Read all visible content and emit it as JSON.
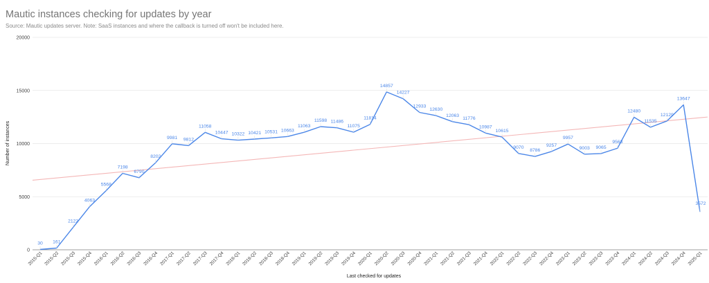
{
  "header": {
    "title": "Mautic instances checking for updates by year",
    "subtitle": "Source: Mautic updates server. Note: SaaS instances and where the callback is turned off won't be included here."
  },
  "colors": {
    "series": "#4a86e8",
    "trendline": "#f4b6b6",
    "grid": "#e6e6e6",
    "axis": "#9e9e9e"
  },
  "chart_data": {
    "type": "line",
    "title": "Mautic instances checking for updates by year",
    "subtitle": "Source: Mautic updates server. Note: SaaS instances and where the callback is turned off won't be included here.",
    "xlabel": "Last checked for updates",
    "ylabel": "Number of instances",
    "ylim": [
      0,
      20000
    ],
    "yticks": [
      0,
      5000,
      10000,
      15000,
      20000
    ],
    "grid": true,
    "legend": "none",
    "categories": [
      "2015-Q1",
      "2015-Q2",
      "2015-Q3",
      "2015-Q4",
      "2016-Q1",
      "2016-Q2",
      "2016-Q3",
      "2016-Q4",
      "2017-Q1",
      "2017-Q2",
      "2017-Q3",
      "2017-Q4",
      "2018-Q1",
      "2018-Q2",
      "2018-Q3",
      "2018-Q4",
      "2019-Q1",
      "2019-Q2",
      "2019-Q3",
      "2019-Q4",
      "2020-Q1",
      "2020-Q2",
      "2020-Q3",
      "2020-Q4",
      "2021-Q1",
      "2021-Q2",
      "2021-Q3",
      "2021-Q4",
      "2022-Q1",
      "2022-Q2",
      "2022-Q3",
      "2022-Q4",
      "2023-Q1",
      "2023-Q2",
      "2023-Q3",
      "2023-Q4",
      "2024-Q1",
      "2024-Q2",
      "2024-Q3",
      "2024-Q4",
      "2025-Q1"
    ],
    "series": [
      {
        "name": "Number of instances",
        "values": [
          30,
          161,
          2122,
          4063,
          5568,
          7198,
          6790,
          8202,
          9981,
          9812,
          11058,
          10447,
          10322,
          10421,
          10531,
          10663,
          11063,
          11598,
          11486,
          11075,
          11814,
          14857,
          14227,
          12933,
          12630,
          12063,
          11776,
          10987,
          10615,
          9070,
          8786,
          9257,
          9957,
          9003,
          9065,
          9563,
          12480,
          11535,
          12129,
          13647,
          3572
        ],
        "data_labels": true
      }
    ],
    "trendline": {
      "type": "linear",
      "start": 6650,
      "end": 12500
    }
  }
}
